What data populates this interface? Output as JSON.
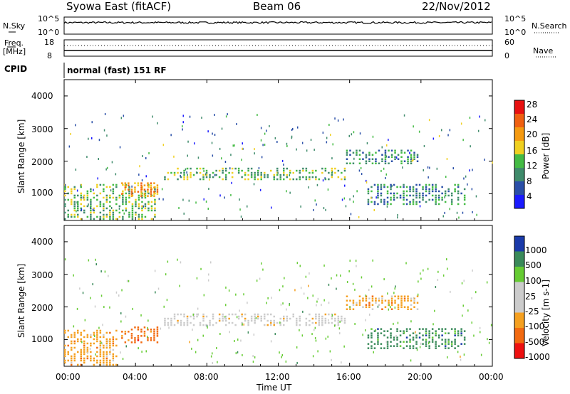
{
  "header": {
    "station": "Syowa East (fitACF)",
    "beam": "Beam 06",
    "date": "22/Nov/2012"
  },
  "noise_panel": {
    "left_label": "N.Sky",
    "left_ticks": [
      "10^5",
      "10^0"
    ],
    "right_label": "N.Search",
    "right_ticks": [
      "10^5",
      "10^0"
    ]
  },
  "freq_panel": {
    "left_label_line1": "Freq.",
    "left_label_line2": "[MHz]",
    "left_ticks": [
      "18",
      "8"
    ],
    "right_label": "Nave",
    "right_ticks": [
      "60",
      "0"
    ]
  },
  "cpid_panel": {
    "label": "CPID",
    "text": "normal (fast) 151 RF"
  },
  "x_axis": {
    "label": "Time UT",
    "ticks": [
      "00:00",
      "04:00",
      "08:00",
      "12:00",
      "16:00",
      "20:00",
      "00:00"
    ]
  },
  "colors": {
    "power_scale": [
      "#1a1aff",
      "#2a4fa8",
      "#3f8b6b",
      "#44bb44",
      "#f0d020",
      "#f59a10",
      "#f06010",
      "#e81010"
    ],
    "velocity_scale": [
      "#ee1111",
      "#f26a10",
      "#f5a020",
      "#cccccc",
      "#cccccc",
      "#66cc33",
      "#3a8a5a",
      "#1a3aaa"
    ]
  },
  "chart_data": [
    {
      "type": "heatmap",
      "title": "",
      "xlabel": "Time UT",
      "ylabel": "Slant Range [km]",
      "xlim": [
        "00:00",
        "24:00"
      ],
      "ylim": [
        180,
        4500
      ],
      "yticks": [
        "1000",
        "2000",
        "3000",
        "4000"
      ],
      "colorbar": {
        "label": "Power [dB]",
        "range": [
          0,
          32
        ],
        "ticks": [
          "4",
          "8",
          "12",
          "16",
          "20",
          "24",
          "28"
        ]
      },
      "echo_regions": [
        {
          "t_start": 0.0,
          "t_end": 5.2,
          "range_km": [
            200,
            1300
          ],
          "value_db": 12
        },
        {
          "t_start": 3.2,
          "t_end": 5.3,
          "range_km": [
            900,
            1350
          ],
          "value_db": 22
        },
        {
          "t_start": 5.6,
          "t_end": 15.8,
          "range_km": [
            1450,
            1800
          ],
          "value_db": 14
        },
        {
          "t_start": 15.8,
          "t_end": 19.8,
          "range_km": [
            1900,
            2350
          ],
          "value_db": 10
        },
        {
          "t_start": 17.0,
          "t_end": 22.5,
          "range_km": [
            700,
            1300
          ],
          "value_db": 8
        }
      ]
    },
    {
      "type": "heatmap",
      "title": "",
      "xlabel": "Time UT",
      "ylabel": "Slant Range [km]",
      "xlim": [
        "00:00",
        "24:00"
      ],
      "ylim": [
        180,
        4500
      ],
      "yticks": [
        "1000",
        "2000",
        "3000",
        "4000"
      ],
      "colorbar": {
        "label": "Velocity [m s-1]",
        "ticks": [
          "1000",
          "500",
          "100",
          "25",
          "-25",
          "-100",
          "-500",
          "-1000"
        ]
      },
      "echo_regions": [
        {
          "t_start": 0.0,
          "t_end": 3.0,
          "range_km": [
            200,
            1300
          ],
          "value_ms": -100
        },
        {
          "t_start": 3.2,
          "t_end": 5.3,
          "range_km": [
            900,
            1400
          ],
          "value_ms": -500
        },
        {
          "t_start": 5.6,
          "t_end": 15.8,
          "range_km": [
            1450,
            1800
          ],
          "value_ms": 0
        },
        {
          "t_start": 15.8,
          "t_end": 19.8,
          "range_km": [
            1900,
            2350
          ],
          "value_ms": -100
        },
        {
          "t_start": 17.0,
          "t_end": 22.5,
          "range_km": [
            700,
            1350
          ],
          "value_ms": 150
        }
      ]
    }
  ]
}
